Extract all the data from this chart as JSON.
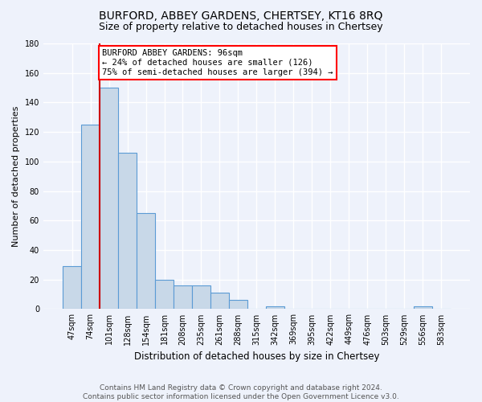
{
  "title": "BURFORD, ABBEY GARDENS, CHERTSEY, KT16 8RQ",
  "subtitle": "Size of property relative to detached houses in Chertsey",
  "xlabel": "Distribution of detached houses by size in Chertsey",
  "ylabel": "Number of detached properties",
  "categories": [
    "47sqm",
    "74sqm",
    "101sqm",
    "128sqm",
    "154sqm",
    "181sqm",
    "208sqm",
    "235sqm",
    "261sqm",
    "288sqm",
    "315sqm",
    "342sqm",
    "369sqm",
    "395sqm",
    "422sqm",
    "449sqm",
    "476sqm",
    "503sqm",
    "529sqm",
    "556sqm",
    "583sqm"
  ],
  "values": [
    29,
    125,
    150,
    106,
    65,
    20,
    16,
    16,
    11,
    6,
    0,
    2,
    0,
    0,
    0,
    0,
    0,
    0,
    0,
    2,
    0
  ],
  "bar_color": "#c8d8e8",
  "bar_edge_color": "#5b9bd5",
  "red_line_index": 2,
  "annotation_text": "BURFORD ABBEY GARDENS: 96sqm\n← 24% of detached houses are smaller (126)\n75% of semi-detached houses are larger (394) →",
  "annotation_box_color": "white",
  "annotation_box_edge_color": "red",
  "red_line_color": "#cc0000",
  "ylim": [
    0,
    180
  ],
  "yticks": [
    0,
    20,
    40,
    60,
    80,
    100,
    120,
    140,
    160,
    180
  ],
  "background_color": "#eef2fb",
  "grid_color": "#ffffff",
  "footer": "Contains HM Land Registry data © Crown copyright and database right 2024.\nContains public sector information licensed under the Open Government Licence v3.0.",
  "title_fontsize": 10,
  "subtitle_fontsize": 9,
  "xlabel_fontsize": 8.5,
  "ylabel_fontsize": 8,
  "tick_fontsize": 7,
  "footer_fontsize": 6.5,
  "annot_fontsize": 7.5
}
